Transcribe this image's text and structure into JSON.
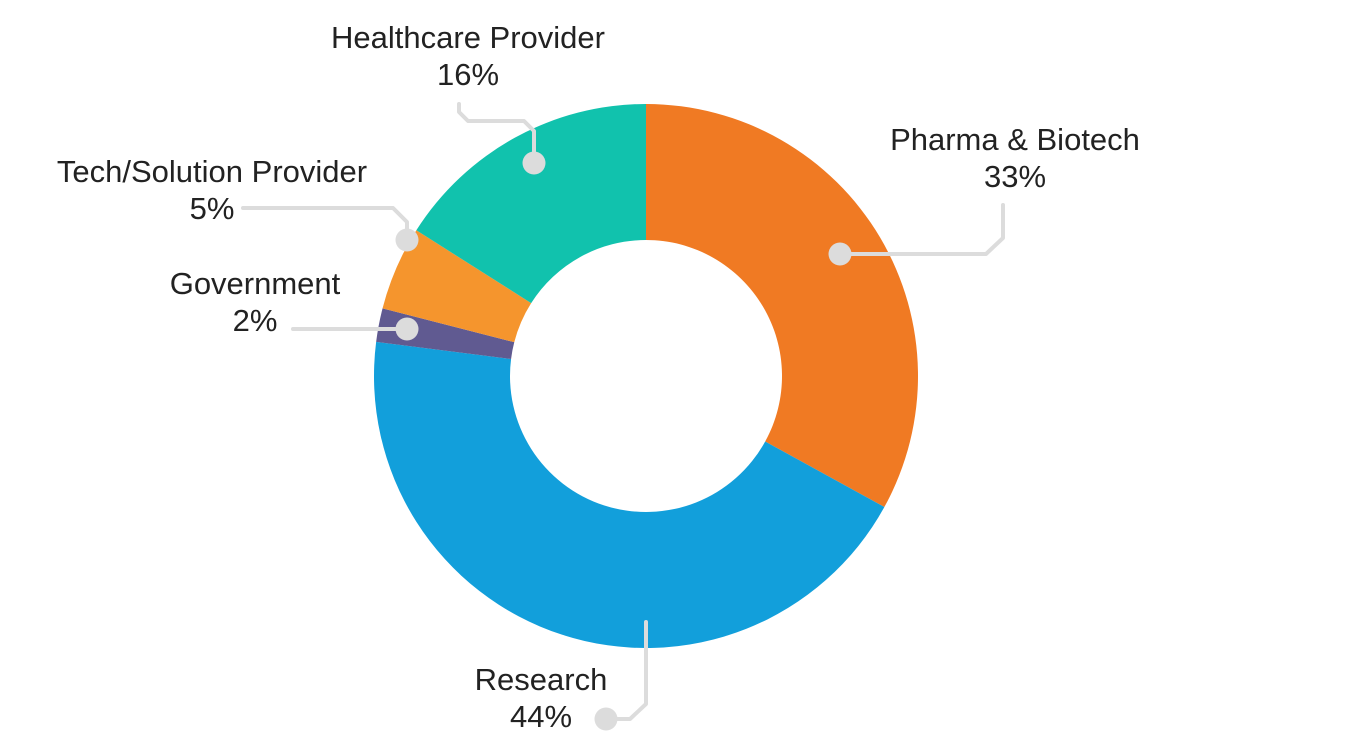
{
  "chart_data": {
    "type": "pie",
    "donut": true,
    "start_angle_deg": 0,
    "direction": "clockwise",
    "legend": "none",
    "slices": [
      {
        "label": "Pharma & Biotech",
        "value": 33,
        "value_label": "33%",
        "color": "#f07a23"
      },
      {
        "label": "Research",
        "value": 44,
        "value_label": "44%",
        "color": "#129fdb"
      },
      {
        "label": "Government",
        "value": 2,
        "value_label": "2%",
        "color": "#605a91"
      },
      {
        "label": "Tech/Solution Provider",
        "value": 5,
        "value_label": "5%",
        "color": "#f5952d"
      },
      {
        "label": "Healthcare Provider",
        "value": 16,
        "value_label": "16%",
        "color": "#11c2ad"
      }
    ]
  }
}
